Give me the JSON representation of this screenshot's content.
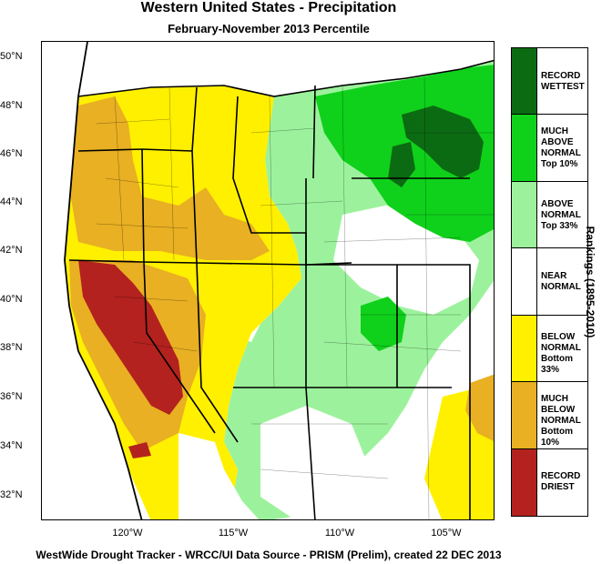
{
  "title": "Western United States - Precipitation",
  "subtitle": "February-November 2013 Percentile",
  "footer": "WestWide Drought Tracker - WRCC/UI  Data Source - PRISM (Prelim), created 22 DEC 2013",
  "side_label": "Rankings (1895-2010)",
  "axes": {
    "lat_labels": [
      "50°N",
      "48°N",
      "46°N",
      "44°N",
      "42°N",
      "40°N",
      "38°N",
      "36°N",
      "34°N",
      "32°N"
    ],
    "lon_labels": [
      "120°W",
      "115°W",
      "110°W",
      "105°W"
    ]
  },
  "legend": [
    {
      "lines": [
        "RECORD",
        "WETTEST"
      ],
      "color": "#0b6b12"
    },
    {
      "lines": [
        "MUCH",
        "ABOVE",
        "NORMAL",
        "Top 10%"
      ],
      "color": "#0fd11b"
    },
    {
      "lines": [
        "ABOVE",
        "NORMAL",
        "Top 33%"
      ],
      "color": "#9cf29c"
    },
    {
      "lines": [
        "NEAR",
        "NORMAL"
      ],
      "color": "#ffffff"
    },
    {
      "lines": [
        "BELOW",
        "NORMAL",
        "Bottom 33%"
      ],
      "color": "#fff000"
    },
    {
      "lines": [
        "MUCH",
        "BELOW",
        "NORMAL",
        "Bottom 10%"
      ],
      "color": "#e8b022"
    },
    {
      "lines": [
        "RECORD",
        "DRIEST"
      ],
      "color": "#b3221e"
    }
  ]
}
